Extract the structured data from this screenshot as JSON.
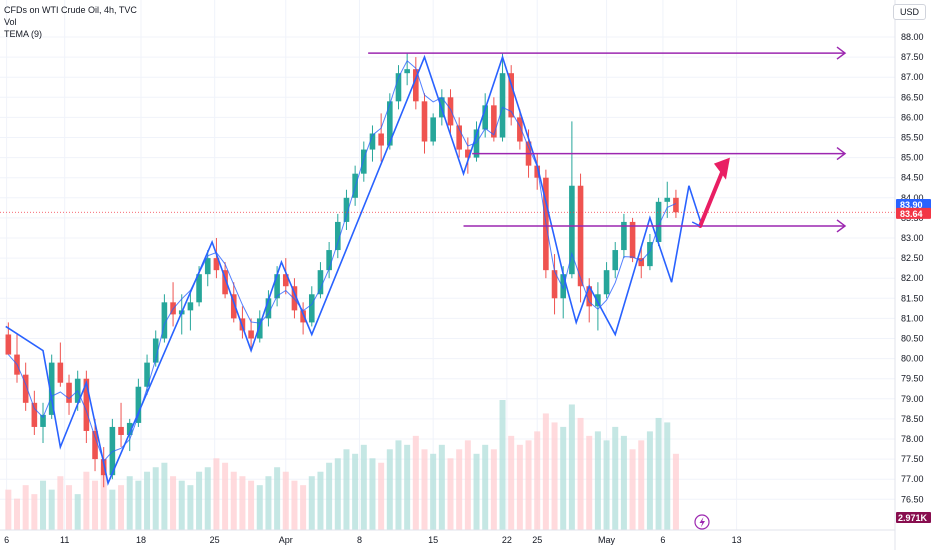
{
  "header": {
    "symbol_line": "CFDs on WTI Crude Oil, 4h, TVC",
    "volume_label": "Vol",
    "indicator_label": "TEMA (9)",
    "currency_button": "USD"
  },
  "chart_data": {
    "type": "candlestick",
    "y_ticks": [
      "88.00",
      "87.50",
      "87.00",
      "86.50",
      "86.00",
      "85.50",
      "85.00",
      "84.50",
      "84.00",
      "83.50",
      "83.00",
      "82.50",
      "82.00",
      "81.50",
      "81.00",
      "80.50",
      "80.00",
      "79.50",
      "79.00",
      "78.50",
      "78.00",
      "77.50",
      "77.00",
      "76.50"
    ],
    "ylim": [
      76.2,
      88.4
    ],
    "x_ticks": [
      {
        "label": "6",
        "t": 0.3
      },
      {
        "label": "11",
        "t": 7.0
      },
      {
        "label": "18",
        "t": 15.8
      },
      {
        "label": "25",
        "t": 24.3
      },
      {
        "label": "Apr",
        "t": 32.5
      },
      {
        "label": "8",
        "t": 41.0
      },
      {
        "label": "15",
        "t": 49.5
      },
      {
        "label": "22",
        "t": 58.0
      },
      {
        "label": "25",
        "t": 61.5
      },
      {
        "label": "May",
        "t": 69.5
      },
      {
        "label": "6",
        "t": 76.0
      },
      {
        "label": "13",
        "t": 84.5
      }
    ],
    "last_price": {
      "label": "83.64",
      "value": 83.64,
      "color": "#f23645"
    },
    "tema_value": {
      "label": "83.90",
      "value": 83.9,
      "color": "#2962ff"
    },
    "volume_badge": {
      "label": "2.971K",
      "color": "#880e4f"
    },
    "candles": [
      [
        80.6,
        80.9,
        80.1,
        80.1
      ],
      [
        80.1,
        80.6,
        79.4,
        79.6
      ],
      [
        79.6,
        79.9,
        78.7,
        78.9
      ],
      [
        78.9,
        79.2,
        78.1,
        78.3
      ],
      [
        78.3,
        78.9,
        77.9,
        78.6
      ],
      [
        78.6,
        80.1,
        78.5,
        79.9
      ],
      [
        79.9,
        80.4,
        79.3,
        79.4
      ],
      [
        79.4,
        79.6,
        78.6,
        78.9
      ],
      [
        78.9,
        79.7,
        78.7,
        79.5
      ],
      [
        79.5,
        79.7,
        77.9,
        78.2
      ],
      [
        78.2,
        78.5,
        77.2,
        77.5
      ],
      [
        77.5,
        77.8,
        76.8,
        77.1
      ],
      [
        77.1,
        78.5,
        77.0,
        78.3
      ],
      [
        78.3,
        78.9,
        77.8,
        78.1
      ],
      [
        78.1,
        78.5,
        77.7,
        78.4
      ],
      [
        78.4,
        79.5,
        78.3,
        79.3
      ],
      [
        79.3,
        80.1,
        79.1,
        79.9
      ],
      [
        79.9,
        80.7,
        79.8,
        80.5
      ],
      [
        80.5,
        81.6,
        80.4,
        81.4
      ],
      [
        81.4,
        81.9,
        80.8,
        81.1
      ],
      [
        81.1,
        81.6,
        80.6,
        81.2
      ],
      [
        81.2,
        81.7,
        80.7,
        81.4
      ],
      [
        81.4,
        82.3,
        81.3,
        82.1
      ],
      [
        82.1,
        82.7,
        81.8,
        82.5
      ],
      [
        82.5,
        83.0,
        82.0,
        82.2
      ],
      [
        82.2,
        82.4,
        81.5,
        81.6
      ],
      [
        81.6,
        81.9,
        80.9,
        81.0
      ],
      [
        81.0,
        81.3,
        80.5,
        80.7
      ],
      [
        80.7,
        81.0,
        80.2,
        80.5
      ],
      [
        80.5,
        81.2,
        80.4,
        81.0
      ],
      [
        81.0,
        81.7,
        80.8,
        81.5
      ],
      [
        81.5,
        82.3,
        81.3,
        82.1
      ],
      [
        82.1,
        82.5,
        81.6,
        81.8
      ],
      [
        81.8,
        82.0,
        81.0,
        81.2
      ],
      [
        81.2,
        81.4,
        80.6,
        80.9
      ],
      [
        80.9,
        81.8,
        80.8,
        81.6
      ],
      [
        81.6,
        82.4,
        81.5,
        82.2
      ],
      [
        82.2,
        82.9,
        82.0,
        82.7
      ],
      [
        82.7,
        83.6,
        82.5,
        83.4
      ],
      [
        83.4,
        84.2,
        83.2,
        84.0
      ],
      [
        84.0,
        84.8,
        83.8,
        84.6
      ],
      [
        84.6,
        85.4,
        84.4,
        85.2
      ],
      [
        85.2,
        85.8,
        84.9,
        85.6
      ],
      [
        85.6,
        86.1,
        84.9,
        85.3
      ],
      [
        85.3,
        86.6,
        85.2,
        86.4
      ],
      [
        86.4,
        87.3,
        86.2,
        87.1
      ],
      [
        87.1,
        87.6,
        86.8,
        87.2
      ],
      [
        87.2,
        87.5,
        86.2,
        86.4
      ],
      [
        86.4,
        86.6,
        85.1,
        85.4
      ],
      [
        85.4,
        86.1,
        85.3,
        86.0
      ],
      [
        86.0,
        86.7,
        85.8,
        86.5
      ],
      [
        86.5,
        86.7,
        85.6,
        85.8
      ],
      [
        85.8,
        86.0,
        85.0,
        85.2
      ],
      [
        85.2,
        85.5,
        84.6,
        85.0
      ],
      [
        85.0,
        85.9,
        84.9,
        85.7
      ],
      [
        85.7,
        86.6,
        85.5,
        86.3
      ],
      [
        86.3,
        86.5,
        85.4,
        85.5
      ],
      [
        85.5,
        87.6,
        85.4,
        87.1
      ],
      [
        87.1,
        87.3,
        85.8,
        86.0
      ],
      [
        86.0,
        86.2,
        85.2,
        85.4
      ],
      [
        85.4,
        85.7,
        84.5,
        84.8
      ],
      [
        84.8,
        85.1,
        84.2,
        84.5
      ],
      [
        84.5,
        84.7,
        82.0,
        82.2
      ],
      [
        82.2,
        82.6,
        81.1,
        81.5
      ],
      [
        81.5,
        82.3,
        81.0,
        82.1
      ],
      [
        82.1,
        85.9,
        82.0,
        84.3
      ],
      [
        84.3,
        84.6,
        81.4,
        81.8
      ],
      [
        81.8,
        82.0,
        80.9,
        81.3
      ],
      [
        81.3,
        81.9,
        80.7,
        81.6
      ],
      [
        81.6,
        82.4,
        81.5,
        82.2
      ],
      [
        82.2,
        82.9,
        82.0,
        82.7
      ],
      [
        82.7,
        83.6,
        82.5,
        83.4
      ],
      [
        83.4,
        83.5,
        82.4,
        82.5
      ],
      [
        82.5,
        82.8,
        82.0,
        82.3
      ],
      [
        82.3,
        83.1,
        82.2,
        82.9
      ],
      [
        82.9,
        84.0,
        82.8,
        83.9
      ],
      [
        83.9,
        84.4,
        83.5,
        84.0
      ],
      [
        84.0,
        84.2,
        83.5,
        83.64
      ]
    ],
    "volumes": [
      0.9,
      0.7,
      1.0,
      0.8,
      1.1,
      0.9,
      1.2,
      1.0,
      0.8,
      1.3,
      1.1,
      1.4,
      0.9,
      1.0,
      1.2,
      1.1,
      1.3,
      1.4,
      1.5,
      1.2,
      1.1,
      1.0,
      1.3,
      1.4,
      1.6,
      1.5,
      1.3,
      1.2,
      1.1,
      1.0,
      1.2,
      1.4,
      1.3,
      1.1,
      1.0,
      1.2,
      1.3,
      1.5,
      1.6,
      1.8,
      1.7,
      1.9,
      1.6,
      1.5,
      1.8,
      2.0,
      1.9,
      2.1,
      1.8,
      1.7,
      1.9,
      1.6,
      1.8,
      2.0,
      1.7,
      1.9,
      1.8,
      2.9,
      2.1,
      1.9,
      2.0,
      2.2,
      2.6,
      2.4,
      2.3,
      2.8,
      2.5,
      2.1,
      2.2,
      2.0,
      2.3,
      2.1,
      1.8,
      2.0,
      2.2,
      2.5,
      2.4,
      1.7
    ],
    "zigzag": [
      [
        0.2,
        80.8
      ],
      [
        4.5,
        80.2
      ],
      [
        6.5,
        77.8
      ],
      [
        9.5,
        79.4
      ],
      [
        12.0,
        76.9
      ],
      [
        24.0,
        82.9
      ],
      [
        28.5,
        80.2
      ],
      [
        32.0,
        82.4
      ],
      [
        35.5,
        80.6
      ],
      [
        48.5,
        87.5
      ],
      [
        53.0,
        84.6
      ],
      [
        57.5,
        87.5
      ],
      [
        61.5,
        84.8
      ],
      [
        64.5,
        82.1
      ],
      [
        66.0,
        80.9
      ],
      [
        67.5,
        81.8
      ],
      [
        70.5,
        80.6
      ],
      [
        74.5,
        83.5
      ],
      [
        77.0,
        81.9
      ],
      [
        79.0,
        84.3
      ],
      [
        80.5,
        83.3
      ]
    ],
    "horizontal_levels": [
      {
        "y": 87.6,
        "t0": 42.0,
        "t1": 97.0
      },
      {
        "y": 85.1,
        "t0": 54.0,
        "t1": 97.0
      },
      {
        "y": 83.3,
        "t0": 53.0,
        "t1": 97.0
      }
    ],
    "projection_arrow": {
      "t0": 80.3,
      "y0": 83.3,
      "t1": 83.5,
      "y1": 85.0,
      "color": "#e91e63"
    },
    "colors": {
      "up": "#26a69a",
      "down": "#ef5350",
      "zigzag": "#2962ff",
      "level": "#9c27b0",
      "tema": "#2962ff",
      "vol_up": "#b2dfdb",
      "vol_down": "#ffcdd2"
    }
  }
}
